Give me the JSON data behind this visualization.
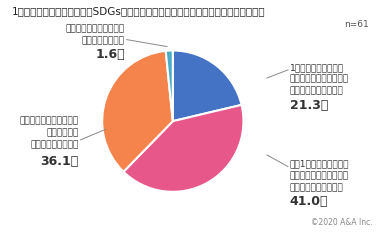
{
  "title": "1年前と比較して、「企業のSDGsへの取り組み」に対する関心や理解が高まったか？",
  "note": "n=61",
  "copyright": "©2020 A&A Inc.",
  "slices": [
    {
      "label": "1年以上前から既に、\n企業の取り組みに対する\n関心や理解は高かった",
      "value": 21.3,
      "color": "#4472c4"
    },
    {
      "label": "ここ1年ぐらいの間に、\n企業の取り組みに対する\n関心や理解が高まった",
      "value": 41.0,
      "color": "#e8578a"
    },
    {
      "label": "企業の取り組みに対する\n関心や理解は\nほとんど変わらない",
      "value": 36.1,
      "color": "#f4844c"
    },
    {
      "label": "企業の取り組みに対する\n関心は低くなった",
      "value": 1.6,
      "color": "#4bacc6"
    }
  ],
  "startangle": 90,
  "background_color": "#ffffff",
  "title_fontsize": 7.5,
  "label_fontsize": 6.5,
  "pct_fontsize": 9
}
